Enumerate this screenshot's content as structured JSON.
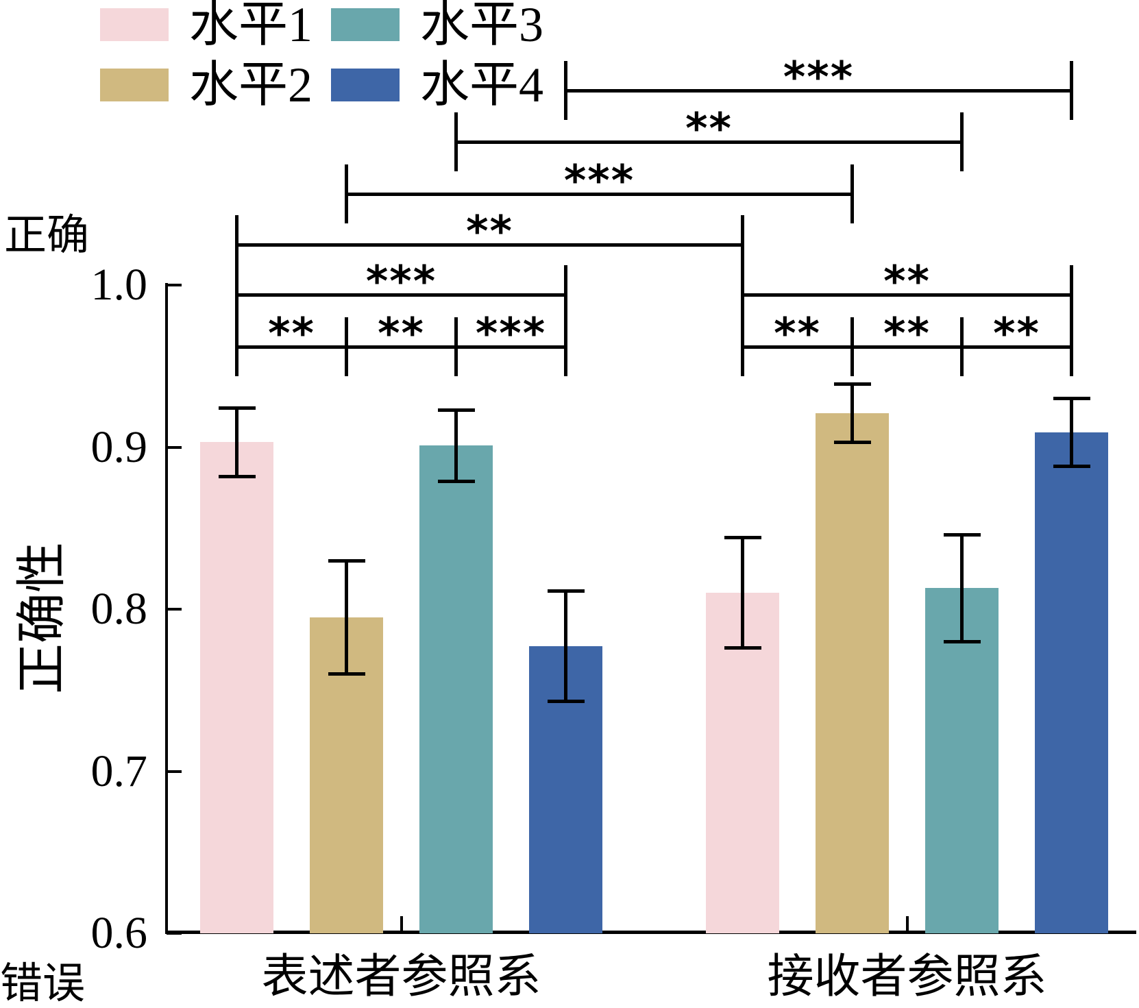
{
  "chart_data": {
    "type": "bar",
    "title": "",
    "ylabel": "正确性",
    "xlabel": "",
    "axis_annotations": {
      "top": "正确",
      "bottom": "错误"
    },
    "categories": [
      "表述者参照系",
      "接收者参照系"
    ],
    "yticks": [
      1.0,
      0.9,
      0.8,
      0.7,
      0.6
    ],
    "ylim": [
      0.6,
      1.0
    ],
    "grid": false,
    "legend_position": "top-left",
    "series": [
      {
        "name": "水平1",
        "color": "#f5d7da",
        "values": [
          0.903,
          0.81
        ],
        "errors": [
          0.021,
          0.034
        ]
      },
      {
        "name": "水平2",
        "color": "#d0b980",
        "values": [
          0.795,
          0.921
        ],
        "errors": [
          0.035,
          0.018
        ]
      },
      {
        "name": "水平3",
        "color": "#69a7ac",
        "values": [
          0.901,
          0.813
        ],
        "errors": [
          0.022,
          0.033
        ]
      },
      {
        "name": "水平4",
        "color": "#3e66a7",
        "values": [
          0.777,
          0.909
        ],
        "errors": [
          0.034,
          0.021
        ]
      }
    ],
    "significance_brackets": [
      {
        "from": {
          "category": 0,
          "series": 3
        },
        "to": {
          "category": 1,
          "series": 3
        },
        "label": "***",
        "tier": 0
      },
      {
        "from": {
          "category": 0,
          "series": 2
        },
        "to": {
          "category": 1,
          "series": 2
        },
        "label": "**",
        "tier": 1
      },
      {
        "from": {
          "category": 0,
          "series": 1
        },
        "to": {
          "category": 1,
          "series": 1
        },
        "label": "***",
        "tier": 2
      },
      {
        "from": {
          "category": 0,
          "series": 0
        },
        "to": {
          "category": 1,
          "series": 0
        },
        "label": "**",
        "tier": 3
      },
      {
        "from": {
          "category": 0,
          "series": 0
        },
        "to": {
          "category": 0,
          "series": 3
        },
        "label": "***",
        "tier": 4
      },
      {
        "from": {
          "category": 1,
          "series": 0
        },
        "to": {
          "category": 1,
          "series": 3
        },
        "label": "**",
        "tier": 4
      },
      {
        "from": {
          "category": 0,
          "series": 0
        },
        "to": {
          "category": 0,
          "series": 1
        },
        "label": "**",
        "tier": 5
      },
      {
        "from": {
          "category": 0,
          "series": 1
        },
        "to": {
          "category": 0,
          "series": 2
        },
        "label": "**",
        "tier": 5
      },
      {
        "from": {
          "category": 0,
          "series": 2
        },
        "to": {
          "category": 0,
          "series": 3
        },
        "label": "***",
        "tier": 5
      },
      {
        "from": {
          "category": 1,
          "series": 0
        },
        "to": {
          "category": 1,
          "series": 1
        },
        "label": "**",
        "tier": 5
      },
      {
        "from": {
          "category": 1,
          "series": 1
        },
        "to": {
          "category": 1,
          "series": 2
        },
        "label": "**",
        "tier": 5
      },
      {
        "from": {
          "category": 1,
          "series": 2
        },
        "to": {
          "category": 1,
          "series": 3
        },
        "label": "**",
        "tier": 5
      }
    ]
  }
}
